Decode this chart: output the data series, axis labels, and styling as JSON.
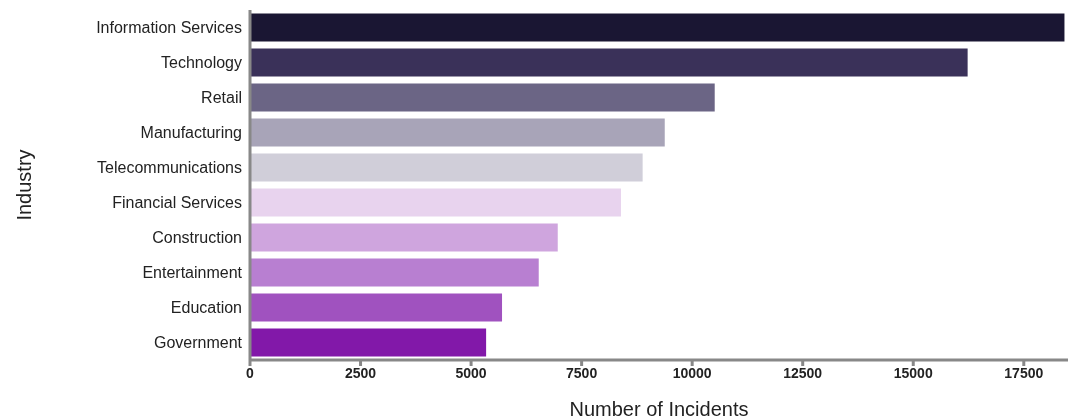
{
  "chart_data": {
    "type": "bar",
    "orientation": "horizontal",
    "xlabel": "Number of Incidents",
    "ylabel": "Industry",
    "categories": [
      "Information Services",
      "Technology",
      "Retail",
      "Manufacturing",
      "Telecommunications",
      "Financial Services",
      "Construction",
      "Entertainment",
      "Education",
      "Government"
    ],
    "values": [
      18420,
      16230,
      10510,
      9380,
      8880,
      8390,
      6960,
      6530,
      5700,
      5340
    ],
    "colors": [
      "#1a1633",
      "#3a3159",
      "#6b6585",
      "#a8a4b8",
      "#d0ced9",
      "#e8d3ee",
      "#cfa5de",
      "#b87fd1",
      "#a052bf",
      "#8218a9"
    ],
    "xlim": [
      0,
      18500
    ],
    "xticks": [
      0,
      2500,
      5000,
      7500,
      10000,
      12500,
      15000,
      17500
    ],
    "grid": false,
    "legend": false
  }
}
